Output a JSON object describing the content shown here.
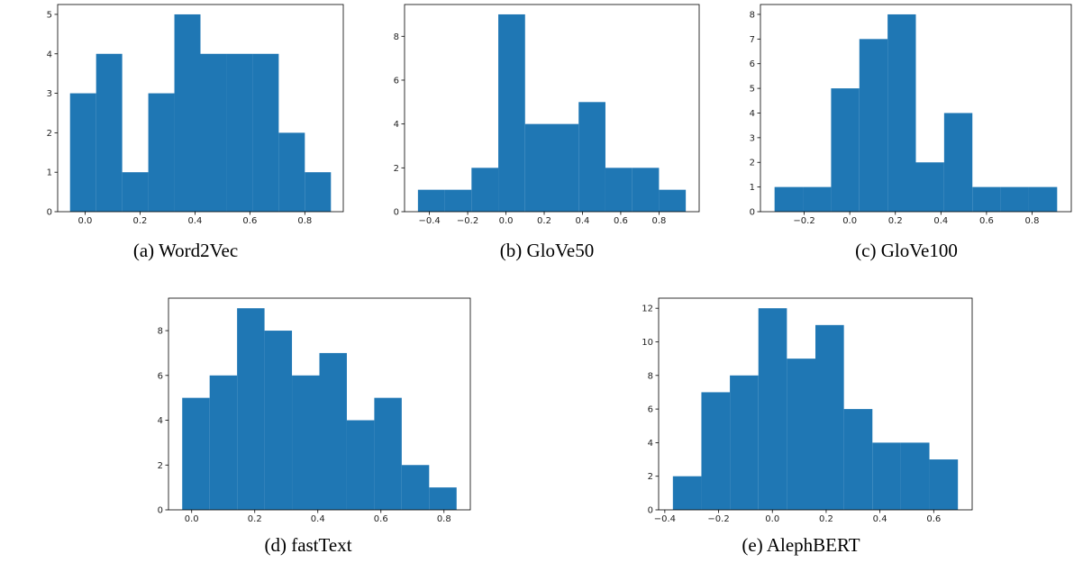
{
  "chart_data": [
    {
      "type": "bar",
      "caption": "(a) Word2Vec",
      "bin_edges": [
        -0.055,
        0.04,
        0.135,
        0.23,
        0.325,
        0.42,
        0.515,
        0.61,
        0.705,
        0.8,
        0.895
      ],
      "values": [
        3,
        4,
        1,
        3,
        5,
        4,
        4,
        4,
        2,
        1
      ],
      "xlim": [
        -0.1,
        0.94
      ],
      "ylim": [
        0,
        5.25
      ],
      "xticks": [
        0.0,
        0.2,
        0.4,
        0.6,
        0.8
      ],
      "xtick_labels": [
        "0.0",
        "0.2",
        "0.4",
        "0.6",
        "0.8"
      ],
      "yticks": [
        0,
        1,
        2,
        3,
        4,
        5
      ],
      "ytick_labels": [
        "0",
        "1",
        "2",
        "3",
        "4",
        "5"
      ],
      "color": "#1f77b4"
    },
    {
      "type": "bar",
      "caption": "(b) GloVe50",
      "bin_edges": [
        -0.46,
        -0.32,
        -0.18,
        -0.04,
        0.1,
        0.24,
        0.38,
        0.52,
        0.66,
        0.8,
        0.94
      ],
      "values": [
        1,
        1,
        2,
        9,
        4,
        4,
        5,
        2,
        2,
        1
      ],
      "xlim": [
        -0.53,
        1.01
      ],
      "ylim": [
        0,
        9.45
      ],
      "xticks": [
        -0.4,
        -0.2,
        0.0,
        0.2,
        0.4,
        0.6,
        0.8
      ],
      "xtick_labels": [
        "−0.4",
        "−0.2",
        "0.0",
        "0.2",
        "0.4",
        "0.6",
        "0.8"
      ],
      "yticks": [
        0,
        2,
        4,
        6,
        8
      ],
      "ytick_labels": [
        "0",
        "2",
        "4",
        "6",
        "8"
      ],
      "color": "#1f77b4"
    },
    {
      "type": "bar",
      "caption": "(c) GloVe100",
      "bin_edges": [
        -0.33,
        -0.206,
        -0.082,
        0.042,
        0.166,
        0.29,
        0.414,
        0.538,
        0.662,
        0.786,
        0.91
      ],
      "values": [
        1,
        1,
        5,
        7,
        8,
        2,
        4,
        1,
        1,
        1
      ],
      "xlim": [
        -0.392,
        0.972
      ],
      "ylim": [
        0,
        8.4
      ],
      "xticks": [
        -0.2,
        0.0,
        0.2,
        0.4,
        0.6,
        0.8
      ],
      "xtick_labels": [
        "−0.2",
        "0.0",
        "0.2",
        "0.4",
        "0.6",
        "0.8"
      ],
      "yticks": [
        0,
        1,
        2,
        3,
        4,
        5,
        6,
        7,
        8
      ],
      "ytick_labels": [
        "0",
        "1",
        "2",
        "3",
        "4",
        "5",
        "6",
        "7",
        "8"
      ],
      "color": "#1f77b4"
    },
    {
      "type": "bar",
      "caption": "(d) fastText",
      "bin_edges": [
        -0.03,
        0.057,
        0.144,
        0.231,
        0.318,
        0.405,
        0.492,
        0.579,
        0.666,
        0.753,
        0.84
      ],
      "values": [
        5,
        6,
        9,
        8,
        6,
        7,
        4,
        5,
        2,
        1
      ],
      "xlim": [
        -0.0735,
        0.8835
      ],
      "ylim": [
        0,
        9.45
      ],
      "xticks": [
        0.0,
        0.2,
        0.4,
        0.6,
        0.8
      ],
      "xtick_labels": [
        "0.0",
        "0.2",
        "0.4",
        "0.6",
        "0.8"
      ],
      "yticks": [
        0,
        2,
        4,
        6,
        8
      ],
      "ytick_labels": [
        "0",
        "2",
        "4",
        "6",
        "8"
      ],
      "color": "#1f77b4"
    },
    {
      "type": "bar",
      "caption": "(e) AlephBERT",
      "bin_edges": [
        -0.37,
        -0.264,
        -0.158,
        -0.052,
        0.054,
        0.16,
        0.266,
        0.372,
        0.478,
        0.584,
        0.69
      ],
      "values": [
        2,
        7,
        8,
        12,
        9,
        11,
        6,
        4,
        4,
        3
      ],
      "xlim": [
        -0.423,
        0.743
      ],
      "ylim": [
        0,
        12.6
      ],
      "xticks": [
        -0.4,
        -0.2,
        0.0,
        0.2,
        0.4,
        0.6
      ],
      "xtick_labels": [
        "−0.4",
        "−0.2",
        "0.0",
        "0.2",
        "0.4",
        "0.6"
      ],
      "yticks": [
        0,
        2,
        4,
        6,
        8,
        10,
        12
      ],
      "ytick_labels": [
        "0",
        "2",
        "4",
        "6",
        "8",
        "10",
        "12"
      ],
      "color": "#1f77b4"
    }
  ]
}
